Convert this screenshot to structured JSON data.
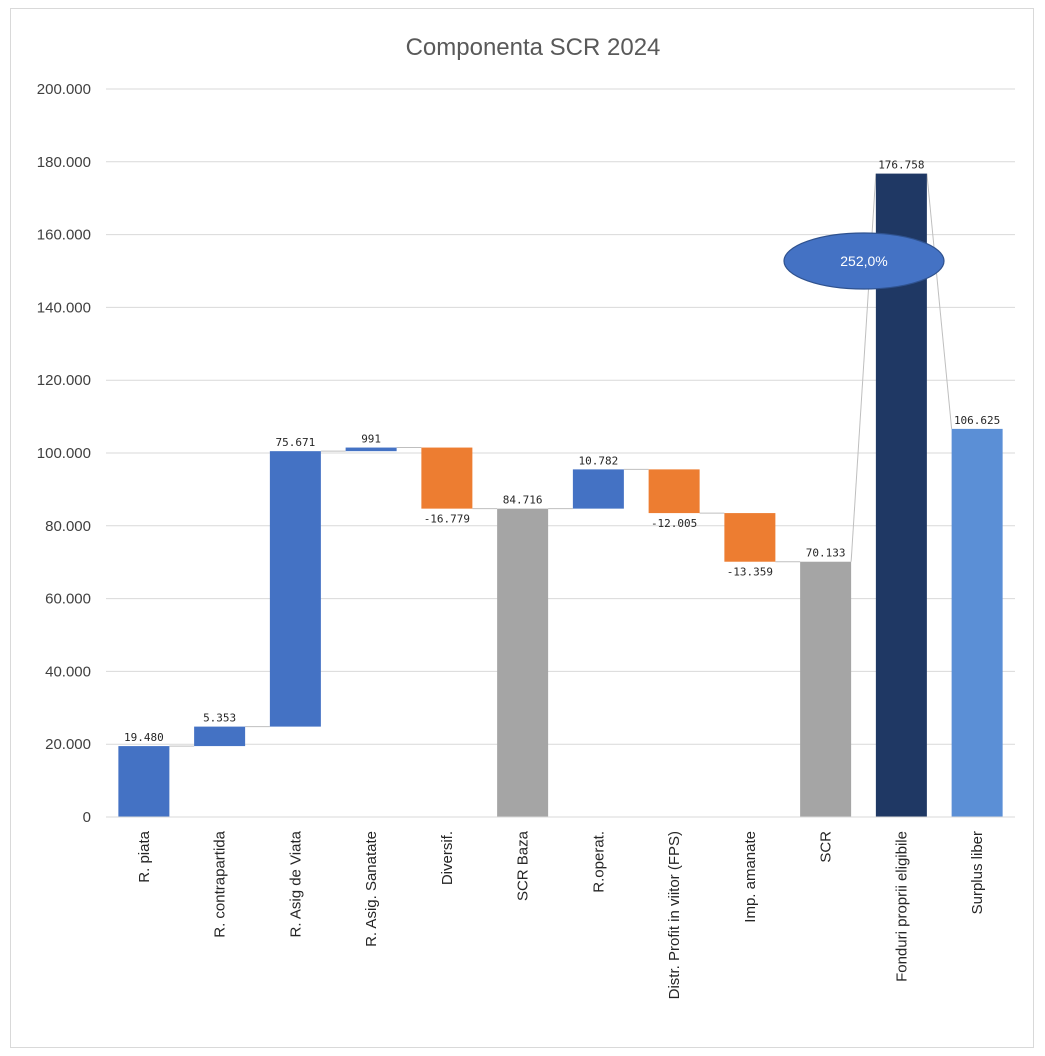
{
  "chart_data": {
    "type": "bar",
    "subtype": "waterfall",
    "title": "Componenta SCR 2024",
    "xlabel": "",
    "ylabel": "",
    "ylim": [
      0,
      200000
    ],
    "yticks": [
      "0",
      "20.000",
      "40.000",
      "60.000",
      "80.000",
      "100.000",
      "120.000",
      "140.000",
      "160.000",
      "180.000",
      "200.000"
    ],
    "grid": true,
    "legend": "none",
    "categories": [
      "R. piata",
      "R. contrapartida",
      "R. Asig de Viata",
      "R. Asig. Sanatate",
      "Diversif.",
      "SCR Baza",
      "R.operat.",
      "Distr. Profit in viitor (FPS)",
      "Imp. amanate",
      "SCR",
      "Fonduri proprii eligibile",
      "Surplus liber"
    ],
    "bars": [
      {
        "category": "R. piata",
        "start": 0,
        "end": 19480,
        "label": "19.480",
        "kind": "increase"
      },
      {
        "category": "R. contrapartida",
        "start": 19480,
        "end": 24833,
        "label": "5.353",
        "kind": "increase"
      },
      {
        "category": "R. Asig de Viata",
        "start": 24833,
        "end": 100504,
        "label": "75.671",
        "kind": "increase"
      },
      {
        "category": "R. Asig. Sanatate",
        "start": 100504,
        "end": 101495,
        "label": "991",
        "kind": "increase"
      },
      {
        "category": "Diversif.",
        "start": 101495,
        "end": 84716,
        "label": "-16.779",
        "kind": "decrease"
      },
      {
        "category": "SCR Baza",
        "start": 0,
        "end": 84716,
        "label": "84.716",
        "kind": "total"
      },
      {
        "category": "R.operat.",
        "start": 84716,
        "end": 95498,
        "label": "10.782",
        "kind": "increase"
      },
      {
        "category": "Distr. Profit in viitor (FPS)",
        "start": 95498,
        "end": 83492,
        "label": "-12.005",
        "kind": "decrease"
      },
      {
        "category": "Imp. amanate",
        "start": 83492,
        "end": 70133,
        "label": "-13.359",
        "kind": "decrease"
      },
      {
        "category": "SCR",
        "start": 0,
        "end": 70133,
        "label": "70.133",
        "kind": "total"
      },
      {
        "category": "Fonduri proprii eligibile",
        "start": 0,
        "end": 176758,
        "label": "176.758",
        "kind": "own_funds"
      },
      {
        "category": "Surplus liber",
        "start": 0,
        "end": 106625,
        "label": "106.625",
        "kind": "surplus"
      }
    ],
    "annotation": {
      "text": "252,0%",
      "type": "solvency-ratio-ellipse"
    },
    "colors": {
      "increase": "#4472c4",
      "decrease": "#ed7d31",
      "total": "#a5a5a5",
      "own_funds": "#1f3864",
      "surplus": "#5b8fd6",
      "annotation": "#4472c4"
    }
  }
}
